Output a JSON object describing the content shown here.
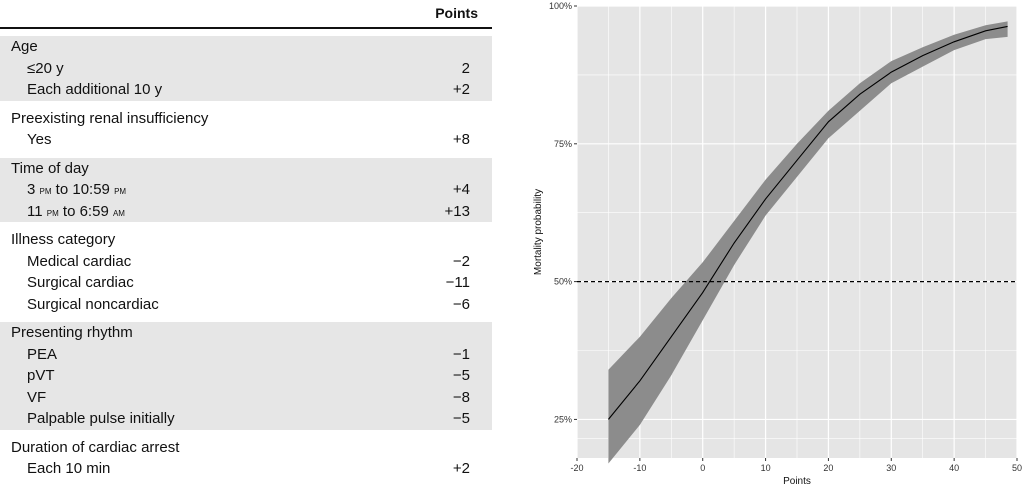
{
  "table": {
    "points_header": "Points",
    "groups": [
      {
        "title": "Age",
        "items": [
          {
            "label": "≤20 y",
            "points": "2"
          },
          {
            "label": "Each additional 10 y",
            "points": "+2"
          }
        ]
      },
      {
        "title": "Preexisting renal insufficiency",
        "items": [
          {
            "label": "Yes",
            "points": "+8"
          }
        ]
      },
      {
        "title": "Time of day",
        "items": [
          {
            "label_parts": [
              "3 ",
              "pm",
              " to 10:59 ",
              "pm"
            ],
            "points": "+4"
          },
          {
            "label_parts": [
              "11 ",
              "pm",
              " to 6:59 ",
              "am"
            ],
            "points": "+13"
          }
        ]
      },
      {
        "title": "Illness category",
        "items": [
          {
            "label": "Medical cardiac",
            "points": "−2"
          },
          {
            "label": "Surgical cardiac",
            "points": "−11"
          },
          {
            "label": "Surgical noncardiac",
            "points": "−6"
          }
        ]
      },
      {
        "title": "Presenting rhythm",
        "items": [
          {
            "label": "PEA",
            "points": "−1"
          },
          {
            "label": "pVT",
            "points": "−5"
          },
          {
            "label": "VF",
            "points": "−8"
          },
          {
            "label": "Palpable pulse initially",
            "points": "−5"
          }
        ]
      },
      {
        "title": "Duration of cardiac arrest",
        "items": [
          {
            "label": "Each 10 min",
            "points": "+2"
          }
        ]
      }
    ]
  },
  "chart_data": {
    "type": "line",
    "title": "",
    "xlabel": "Points",
    "ylabel": "Mortality probability",
    "xlim": [
      -20,
      50
    ],
    "ylim": [
      0.18,
      1.0
    ],
    "xticks": [
      -20,
      -10,
      0,
      10,
      20,
      30,
      40,
      50
    ],
    "yticks": [
      {
        "value": 0.25,
        "label": "25%"
      },
      {
        "value": 0.5,
        "label": "50%"
      },
      {
        "value": 0.75,
        "label": "75%"
      },
      {
        "value": 1.0,
        "label": "100%"
      }
    ],
    "grid": true,
    "reference_line": {
      "y": 0.5,
      "style": "dashed"
    },
    "series": [
      {
        "x": [
          -15,
          -10,
          -5,
          0,
          5,
          10,
          15,
          20,
          25,
          30,
          35,
          40,
          45,
          48.5
        ],
        "y": [
          0.25,
          0.32,
          0.4,
          0.48,
          0.57,
          0.65,
          0.72,
          0.79,
          0.84,
          0.88,
          0.91,
          0.935,
          0.955,
          0.963
        ],
        "lower": [
          0.17,
          0.24,
          0.33,
          0.43,
          0.53,
          0.62,
          0.69,
          0.76,
          0.81,
          0.86,
          0.89,
          0.92,
          0.94,
          0.944
        ],
        "upper": [
          0.34,
          0.4,
          0.47,
          0.535,
          0.61,
          0.685,
          0.75,
          0.81,
          0.86,
          0.9,
          0.925,
          0.948,
          0.965,
          0.972
        ]
      }
    ],
    "colors": {
      "panel": "#e5e5e5",
      "grid": "#ffffff",
      "band": "#8c8c8c",
      "line": "#000000"
    }
  }
}
